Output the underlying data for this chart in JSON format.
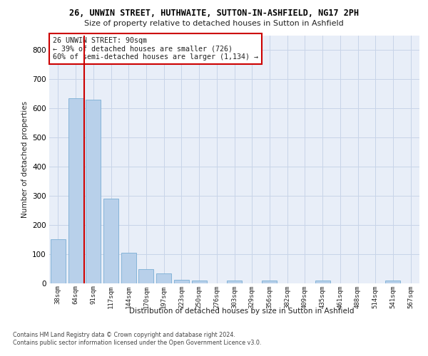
{
  "title1": "26, UNWIN STREET, HUTHWAITE, SUTTON-IN-ASHFIELD, NG17 2PH",
  "title2": "Size of property relative to detached houses in Sutton in Ashfield",
  "xlabel": "Distribution of detached houses by size in Sutton in Ashfield",
  "ylabel": "Number of detached properties",
  "categories": [
    "38sqm",
    "64sqm",
    "91sqm",
    "117sqm",
    "144sqm",
    "170sqm",
    "197sqm",
    "223sqm",
    "250sqm",
    "276sqm",
    "303sqm",
    "329sqm",
    "356sqm",
    "382sqm",
    "409sqm",
    "435sqm",
    "461sqm",
    "488sqm",
    "514sqm",
    "541sqm",
    "567sqm"
  ],
  "values": [
    150,
    635,
    630,
    290,
    103,
    47,
    32,
    12,
    8,
    0,
    8,
    0,
    8,
    0,
    0,
    8,
    0,
    0,
    0,
    8,
    0
  ],
  "bar_color": "#b8d0ea",
  "bar_edge_color": "#7aadd4",
  "vline_x_index": 1.5,
  "vline_color": "#cc0000",
  "annotation_text": "26 UNWIN STREET: 90sqm\n← 39% of detached houses are smaller (726)\n60% of semi-detached houses are larger (1,134) →",
  "annotation_box_color": "#ffffff",
  "annotation_box_edge": "#cc0000",
  "grid_color": "#c8d4e8",
  "background_color": "#e8eef8",
  "footer1": "Contains HM Land Registry data © Crown copyright and database right 2024.",
  "footer2": "Contains public sector information licensed under the Open Government Licence v3.0.",
  "ylim": [
    0,
    850
  ],
  "yticks": [
    0,
    100,
    200,
    300,
    400,
    500,
    600,
    700,
    800
  ]
}
